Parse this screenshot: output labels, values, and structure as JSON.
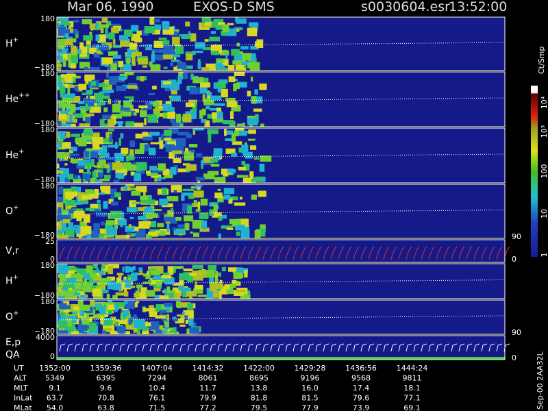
{
  "header": {
    "date": "Mar 06, 1990",
    "mission": "EXOS-D SMS",
    "file": "s0030604.esr",
    "time": "13:52:00"
  },
  "panels": [
    {
      "label": "H",
      "superscript": "+",
      "ticks_left": [
        "180",
        "−180"
      ]
    },
    {
      "label": "He",
      "superscript": "++",
      "ticks_left": [
        "180",
        "−180"
      ]
    },
    {
      "label": "He",
      "superscript": "+",
      "ticks_left": [
        "180",
        "−180"
      ]
    },
    {
      "label": "O",
      "superscript": "+",
      "ticks_left": [
        "180",
        "−180"
      ],
      "ticks_right": [
        "90"
      ]
    },
    {
      "label": "V,r",
      "ticks_left": [
        "25",
        "0"
      ],
      "ticks_right": [
        "0"
      ]
    },
    {
      "label": "H",
      "superscript": "+",
      "ticks_left": [
        "180",
        "−180"
      ]
    },
    {
      "label": "O",
      "superscript": "+",
      "ticks_left": [
        "180",
        "−180"
      ],
      "ticks_right": [
        "90"
      ]
    },
    {
      "label": "E,p",
      "label2": "QA",
      "ticks_left": [
        "4000",
        "0"
      ],
      "ticks_right": [
        "0"
      ]
    }
  ],
  "colorbar": {
    "title": "Ct/Smp",
    "labels": [
      "10⁴",
      "10³",
      "100",
      "10",
      "1"
    ]
  },
  "side_note": "Sep-00 2AA32L",
  "footer": {
    "rows": [
      {
        "name": "UT",
        "cells": [
          "1352:00",
          "1359:36",
          "1407:04",
          "1414:32",
          "1422:00",
          "1429:28",
          "1436:56",
          "1444:24"
        ]
      },
      {
        "name": "ALT",
        "cells": [
          "5349",
          "6395",
          "7294",
          "8061",
          "8695",
          "9196",
          "9568",
          "9811"
        ]
      },
      {
        "name": "MLT",
        "cells": [
          "9.1",
          "9.6",
          "10.4",
          "11.7",
          "13.8",
          "16.0",
          "17.4",
          "18.1"
        ]
      },
      {
        "name": "InLat",
        "cells": [
          "63.7",
          "70.8",
          "76.1",
          "79.9",
          "81.8",
          "81.5",
          "79.6",
          "77.1"
        ]
      },
      {
        "name": "MLat",
        "cells": [
          "54.0",
          "63.8",
          "71.5",
          "77.2",
          "79.5",
          "77.9",
          "73.9",
          "69.1"
        ]
      }
    ]
  }
}
